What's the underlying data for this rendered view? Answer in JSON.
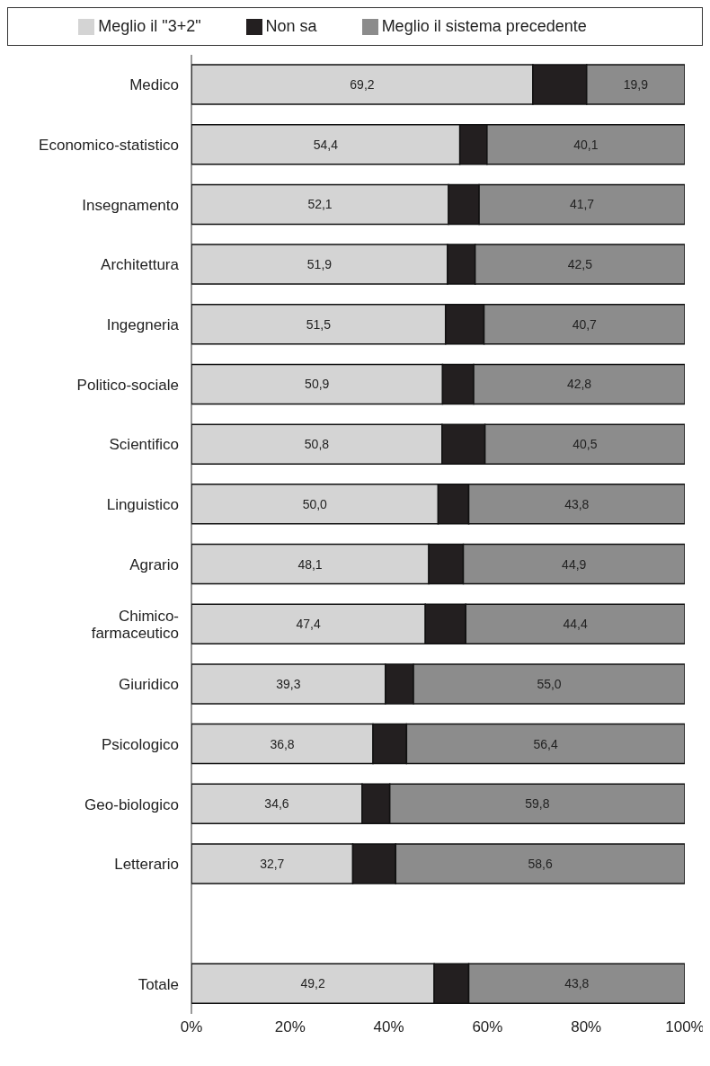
{
  "chart_data": {
    "type": "bar",
    "orientation": "horizontal",
    "stacked": true,
    "legend": "top",
    "grid": false,
    "categories": [
      "Medico",
      "Economico-statistico",
      "Insegnamento",
      "Architettura",
      "Ingegneria",
      "Politico-sociale",
      "Scientifico",
      "Linguistico",
      "Agrario",
      "Chimico-\nfarmaceutico",
      "Giuridico",
      "Psicologico",
      "Geo-biologico",
      "Letterario",
      null,
      "Totale"
    ],
    "series": [
      {
        "name": "Meglio il \"3+2\"",
        "color": "#d4d4d4",
        "values": [
          69.2,
          54.4,
          52.1,
          51.9,
          51.5,
          50.9,
          50.8,
          50.0,
          48.1,
          47.4,
          39.3,
          36.8,
          34.6,
          32.7,
          null,
          49.2
        ],
        "value_labels": [
          "69,2",
          "54,4",
          "52,1",
          "51,9",
          "51,5",
          "50,9",
          "50,8",
          "50,0",
          "48,1",
          "47,4",
          "39,3",
          "36,8",
          "34,6",
          "32,7",
          null,
          "49,2"
        ]
      },
      {
        "name": "Non sa",
        "color": "#231f20",
        "values": [
          10.9,
          5.5,
          6.2,
          5.6,
          7.8,
          6.3,
          8.7,
          6.2,
          7.0,
          8.2,
          5.7,
          6.8,
          5.6,
          8.7,
          null,
          7.0
        ]
      },
      {
        "name": "Meglio il sistema precedente",
        "color": "#8c8c8c",
        "values": [
          19.9,
          40.1,
          41.7,
          42.5,
          40.7,
          42.8,
          40.5,
          43.8,
          44.9,
          44.4,
          55.0,
          56.4,
          59.8,
          58.6,
          null,
          43.8
        ],
        "value_labels": [
          "19,9",
          "40,1",
          "41,7",
          "42,5",
          "40,7",
          "42,8",
          "40,5",
          "43,8",
          "44,9",
          "44,4",
          "55,0",
          "56,4",
          "59,8",
          "58,6",
          null,
          "43,8"
        ]
      }
    ],
    "xlim": [
      0,
      100
    ],
    "xticks": [
      {
        "value": 0,
        "label": "0%"
      },
      {
        "value": 20,
        "label": "20%"
      },
      {
        "value": 40,
        "label": "40%"
      },
      {
        "value": 60,
        "label": "60%"
      },
      {
        "value": 80,
        "label": "80%"
      },
      {
        "value": 100,
        "label": "100%"
      }
    ]
  }
}
